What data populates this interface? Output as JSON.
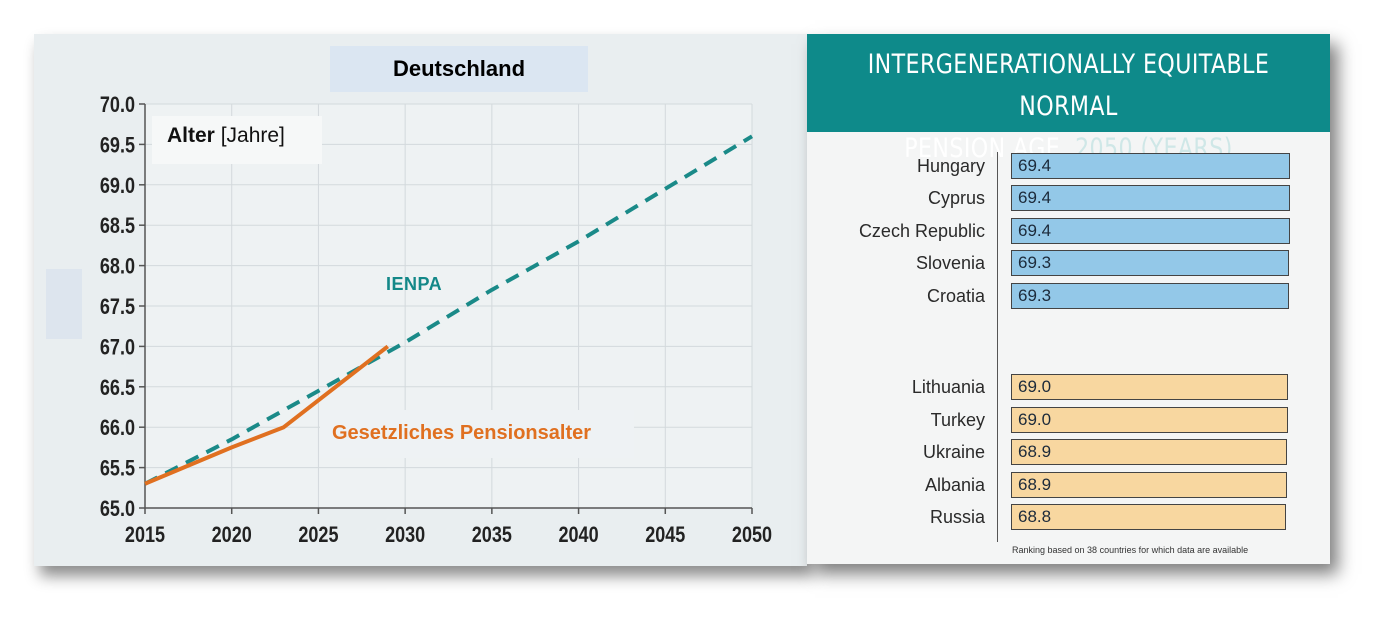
{
  "left_chart": {
    "title": "Deutschland",
    "ylabel_bold": "Alter",
    "ylabel_rest": " [Jahre]",
    "chart_data": {
      "type": "line",
      "title": "Deutschland",
      "ylabel": "Alter [Jahre]",
      "xlim": [
        2015,
        2050
      ],
      "ylim": [
        65.0,
        70.0
      ],
      "xticks": [
        2015,
        2020,
        2025,
        2030,
        2035,
        2040,
        2045,
        2050
      ],
      "yticks": [
        65.0,
        65.5,
        66.0,
        66.5,
        67.0,
        67.5,
        68.0,
        68.5,
        69.0,
        69.5,
        70.0
      ],
      "ytick_labels": [
        "65.0",
        "65.5",
        "66.0",
        "66.5",
        "67.0",
        "67.5",
        "68.0",
        "68.5",
        "69.0",
        "69.5",
        "70.0"
      ],
      "grid": true,
      "series": [
        {
          "name": "IENPA",
          "style": "dashed",
          "color": "#1a8a88",
          "x": [
            2015,
            2020,
            2025,
            2030,
            2035,
            2040,
            2045,
            2050
          ],
          "y": [
            65.3,
            65.85,
            66.45,
            67.05,
            67.7,
            68.3,
            68.95,
            69.6
          ]
        },
        {
          "name": "Gesetzliches Pensionsalter",
          "style": "solid",
          "color": "#e07020",
          "x": [
            2015,
            2020,
            2023,
            2029
          ],
          "y": [
            65.3,
            65.75,
            66.0,
            67.0
          ]
        }
      ]
    }
  },
  "right_chart": {
    "header_line1": "INTERGENERATIONALLY EQUITABLE NORMAL",
    "header_line2_main": "PENSION AGE,",
    "header_line2_thin": " 2050 (YEARS)",
    "footnote": "Ranking based on 38 countries for which data are available",
    "chart_data": {
      "type": "bar",
      "orientation": "horizontal",
      "title": "INTERGENERATIONALLY EQUITABLE NORMAL PENSION AGE, 2050 (YEARS)",
      "groups": [
        {
          "color": "#93c8e8",
          "rows": [
            {
              "label": "Hungary",
              "value": "69.4"
            },
            {
              "label": "Cyprus",
              "value": "69.4"
            },
            {
              "label": "Czech Republic",
              "value": "69.4"
            },
            {
              "label": "Slovenia",
              "value": "69.3"
            },
            {
              "label": "Croatia",
              "value": "69.3"
            }
          ]
        },
        {
          "color": "#f8d7a0",
          "rows": [
            {
              "label": "Lithuania",
              "value": "69.0"
            },
            {
              "label": "Turkey",
              "value": "69.0"
            },
            {
              "label": "Ukraine",
              "value": "68.9"
            },
            {
              "label": "Albania",
              "value": "68.9"
            },
            {
              "label": "Russia",
              "value": "68.8"
            }
          ]
        }
      ]
    }
  }
}
